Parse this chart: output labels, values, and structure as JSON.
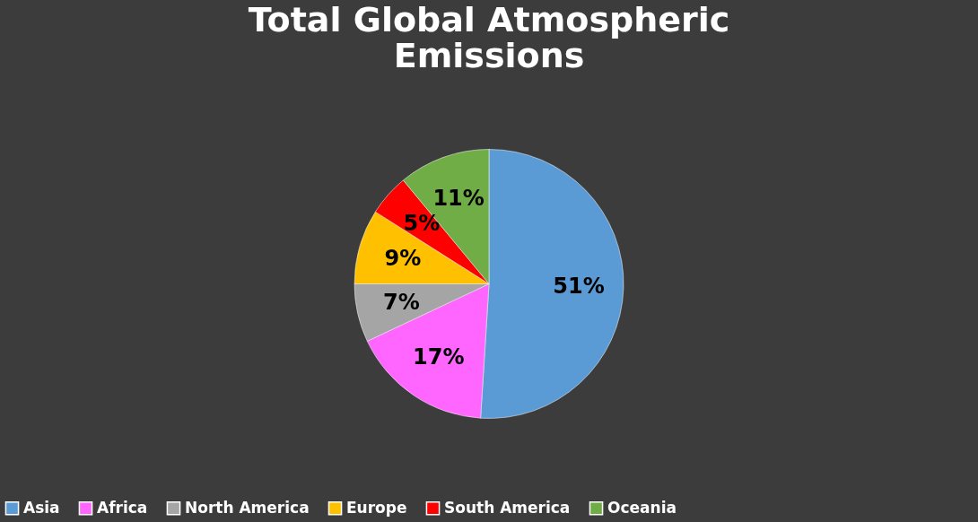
{
  "chart_data": {
    "type": "pie",
    "title": "Total Global Atmospheric Emissions",
    "categories": [
      "Asia",
      "Africa",
      "North America",
      "Europe",
      "South America",
      "Oceania"
    ],
    "values": [
      51,
      17,
      7,
      9,
      5,
      11
    ],
    "colors": [
      "#5b9bd5",
      "#ff66ff",
      "#a5a5a5",
      "#ffc000",
      "#ff0000",
      "#70ad47"
    ],
    "value_labels": [
      "51%",
      "17%",
      "7%",
      "9%",
      "5%",
      "11%"
    ],
    "legend": "bottom"
  }
}
